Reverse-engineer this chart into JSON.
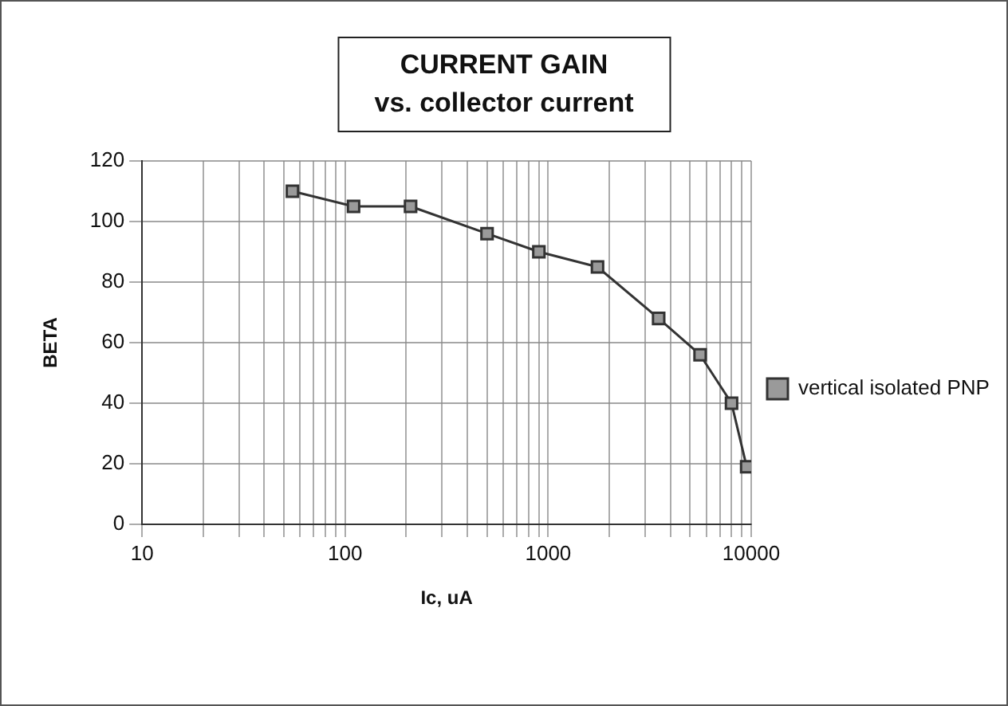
{
  "chart_data": {
    "type": "line",
    "title": "CURRENT GAIN",
    "subtitle": "vs. collector current",
    "xlabel": "Ic, uA",
    "ylabel": "BETA",
    "x": [
      55,
      110,
      210,
      500,
      900,
      1750,
      3500,
      5600,
      8000,
      9500
    ],
    "series": [
      {
        "name": "vertical isolated PNP",
        "color": "#333333",
        "values": [
          110,
          105,
          105,
          96,
          90,
          85,
          68,
          56,
          40,
          19
        ]
      }
    ],
    "xlim": [
      10,
      10000
    ],
    "ylim": [
      0,
      120
    ],
    "xticks": [
      10,
      {
        "value": 20,
        "label": null
      },
      {
        "value": 30,
        "label": null
      },
      {
        "value": 40,
        "label": null
      },
      {
        "value": 50,
        "label": null
      },
      {
        "value": 60,
        "label": null
      },
      {
        "value": 70,
        "label": null
      },
      {
        "value": 80,
        "label": null
      },
      {
        "value": 90,
        "label": null
      },
      100,
      {
        "value": 200,
        "label": null
      },
      {
        "value": 300,
        "label": null
      },
      {
        "value": 400,
        "label": null
      },
      {
        "value": 500,
        "label": null
      },
      {
        "value": 600,
        "label": null
      },
      {
        "value": 700,
        "label": null
      },
      {
        "value": 800,
        "label": null
      },
      {
        "value": 900,
        "label": null
      },
      1000,
      {
        "value": 2000,
        "label": null
      },
      {
        "value": 3000,
        "label": null
      },
      {
        "value": 4000,
        "label": null
      },
      {
        "value": 5000,
        "label": null
      },
      {
        "value": 6000,
        "label": null
      },
      {
        "value": 7000,
        "label": null
      },
      {
        "value": 8000,
        "label": null
      },
      {
        "value": 9000,
        "label": null
      },
      10000
    ],
    "yticks": [
      0,
      20,
      40,
      60,
      80,
      100,
      120
    ],
    "log": "x",
    "grid": true,
    "legend": "right",
    "marker": "square",
    "line_style": "solid"
  }
}
